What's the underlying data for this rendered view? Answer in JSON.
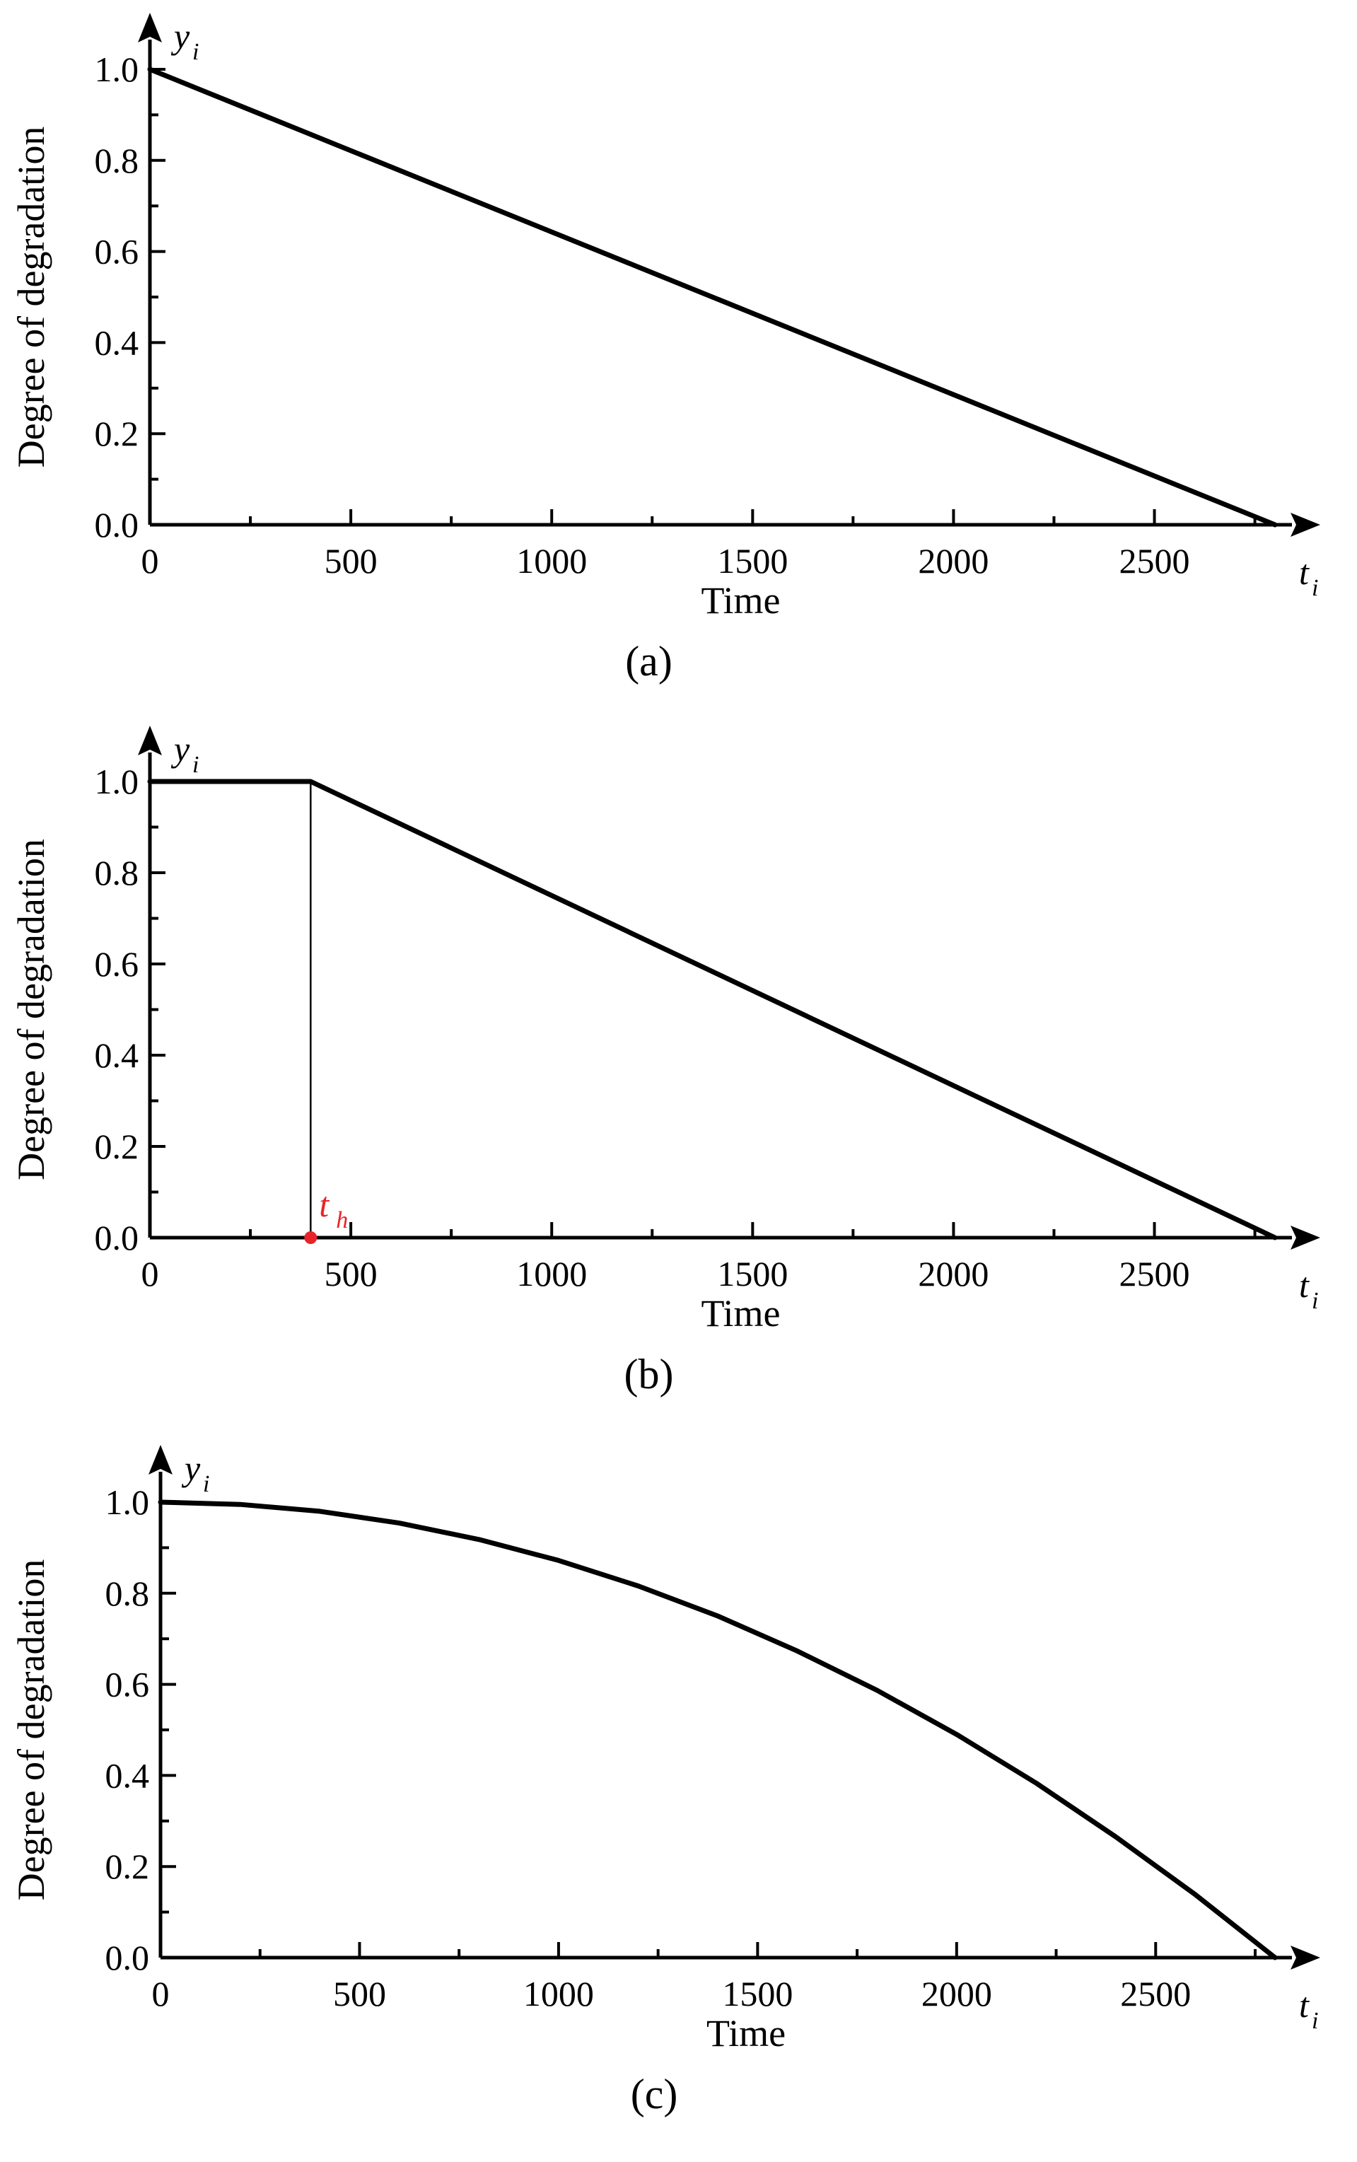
{
  "chart_data": [
    {
      "type": "line",
      "panel_label": "(a)",
      "xlabel": "Time",
      "ylabel": "Degree of degradation",
      "x_axis_symbol": "t",
      "x_axis_symbol_sub": "i",
      "y_axis_symbol": "y",
      "y_axis_symbol_sub": "i",
      "xlim": [
        0,
        2800
      ],
      "ylim": [
        0,
        1.0
      ],
      "x_ticks": [
        "0",
        "500",
        "1000",
        "1500",
        "2000",
        "2500"
      ],
      "y_ticks": [
        "0.0",
        "0.2",
        "0.4",
        "0.6",
        "0.8",
        "1.0"
      ],
      "grid": false,
      "series": [
        {
          "color": "#000000",
          "x": [
            0,
            2800
          ],
          "y": [
            1.0,
            0.0
          ]
        }
      ]
    },
    {
      "type": "line",
      "panel_label": "(b)",
      "xlabel": "Time",
      "ylabel": "Degree of degradation",
      "x_axis_symbol": "t",
      "x_axis_symbol_sub": "i",
      "y_axis_symbol": "y",
      "y_axis_symbol_sub": "i",
      "xlim": [
        0,
        2800
      ],
      "ylim": [
        0,
        1.0
      ],
      "x_ticks": [
        "0",
        "500",
        "1000",
        "1500",
        "2000",
        "2500"
      ],
      "y_ticks": [
        "0.0",
        "0.2",
        "0.4",
        "0.6",
        "0.8",
        "1.0"
      ],
      "grid": false,
      "series": [
        {
          "color": "#000000",
          "x": [
            0,
            400,
            2800
          ],
          "y": [
            1.0,
            1.0,
            0.0
          ]
        }
      ],
      "marker": {
        "x": 400,
        "y": 0,
        "color": "#e8242a",
        "label": "t",
        "label_sub": "h",
        "dropline": true
      }
    },
    {
      "type": "line",
      "panel_label": "(c)",
      "xlabel": "Time",
      "ylabel": "Degree of degradation",
      "x_axis_symbol": "t",
      "x_axis_symbol_sub": "i",
      "y_axis_symbol": "y",
      "y_axis_symbol_sub": "i",
      "xlim": [
        0,
        2800
      ],
      "ylim": [
        0,
        1.0
      ],
      "x_ticks": [
        "0",
        "500",
        "1000",
        "1500",
        "2000",
        "2500"
      ],
      "y_ticks": [
        "0.0",
        "0.2",
        "0.4",
        "0.6",
        "0.8",
        "1.0"
      ],
      "grid": false,
      "series": [
        {
          "color": "#000000",
          "x": [
            0,
            200,
            400,
            600,
            800,
            1000,
            1200,
            1400,
            1600,
            1800,
            2000,
            2200,
            2400,
            2600,
            2800
          ],
          "y": [
            1.0,
            0.995,
            0.98,
            0.954,
            0.918,
            0.872,
            0.816,
            0.75,
            0.673,
            0.587,
            0.49,
            0.383,
            0.265,
            0.138,
            0.0
          ]
        }
      ]
    }
  ],
  "colors": {
    "ink": "#000000",
    "accent": "#e8242a"
  }
}
